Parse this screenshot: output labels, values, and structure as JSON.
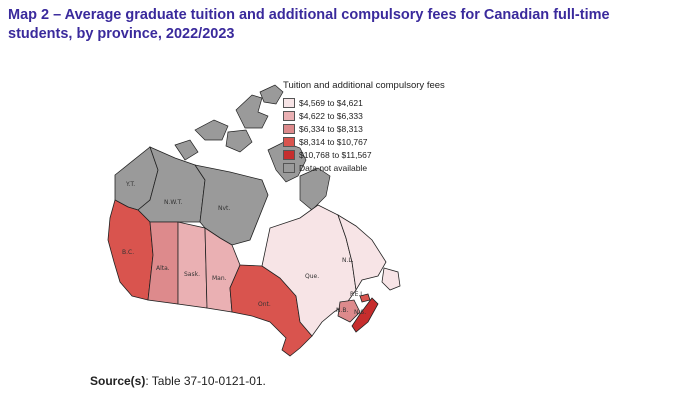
{
  "title": "Map 2 –  Average graduate tuition and additional compulsory fees for Canadian full-time students, by province, 2022/2023",
  "legend": {
    "title": "Tuition and additional compulsory fees",
    "items": [
      {
        "label": "$4,569 to $4,621",
        "color": "#f7e4e6"
      },
      {
        "label": "$4,622 to $6,333",
        "color": "#eab0b3"
      },
      {
        "label": "$6,334 to $8,313",
        "color": "#dd8a8c"
      },
      {
        "label": "$8,314 to $10,767",
        "color": "#d9544e"
      },
      {
        "label": "$10,768 to $11,567",
        "color": "#c62d2d"
      },
      {
        "label": "Data not available",
        "color": "#9a9a9a"
      }
    ]
  },
  "regions": {
    "yt": {
      "label": "Y.T.",
      "class": "Data not available"
    },
    "nwt": {
      "label": "N.W.T.",
      "class": "Data not available"
    },
    "nvt": {
      "label": "Nvt.",
      "class": "Data not available"
    },
    "bc": {
      "label": "B.C.",
      "class": "$8,314 to $10,767"
    },
    "alta": {
      "label": "Alta.",
      "class": "$6,334 to $8,313"
    },
    "sask": {
      "label": "Sask.",
      "class": "$4,622 to $6,333"
    },
    "man": {
      "label": "Man.",
      "class": "$4,622 to $6,333"
    },
    "ont": {
      "label": "Ont.",
      "class": "$8,314 to $10,767"
    },
    "que": {
      "label": "Que.",
      "class": "$4,569 to $4,621"
    },
    "nl": {
      "label": "N.L.",
      "class": "$4,569 to $4,621"
    },
    "nb": {
      "label": "N.B.",
      "class": "$6,334 to $8,313"
    },
    "pei": {
      "label": "P.E.I.",
      "class": "$8,314 to $10,767"
    },
    "ns": {
      "label": "N.S.",
      "class": "$10,768 to $11,567"
    }
  },
  "source": {
    "label": "Source(s)",
    "text": ": Table 37-10-0121-01."
  }
}
